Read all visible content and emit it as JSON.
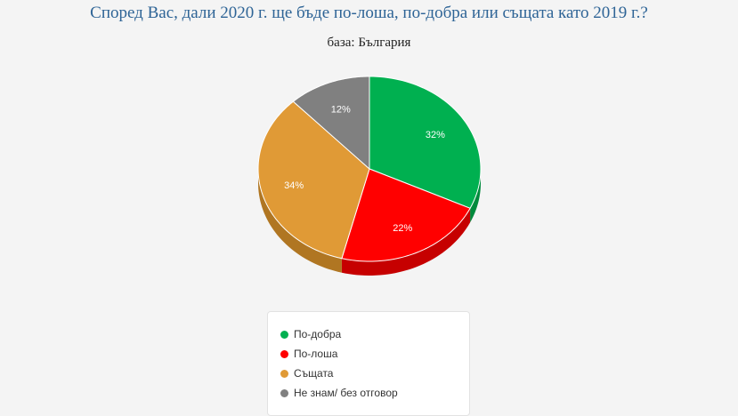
{
  "chart_data": {
    "type": "pie",
    "title": "Според Вас, дали 2020 г. ще бъде по-лоша, по-добра или същата като 2019 г.?",
    "subtitle": "база: България",
    "unit": "%",
    "slices": [
      {
        "name": "По-добра",
        "value": 32,
        "label": "32%",
        "color": "#00b050",
        "side_color": "#008a3c"
      },
      {
        "name": "По-лоша",
        "value": 22,
        "label": "22%",
        "color": "#ff0000",
        "side_color": "#c60000"
      },
      {
        "name": "Същата",
        "value": 34,
        "label": "34%",
        "color": "#e09a36",
        "side_color": "#b07622"
      },
      {
        "name": "Не знам/ без отговор",
        "value": 12,
        "label": "12%",
        "color": "#808080",
        "side_color": "#5e5e5e"
      }
    ],
    "legend_position": "bottom"
  }
}
